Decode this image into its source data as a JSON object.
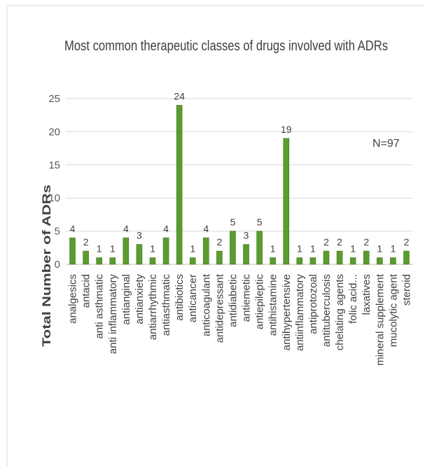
{
  "chart_data": {
    "type": "bar",
    "title": "Most common therapeutic classes of drugs involved with ADRs",
    "ylabel": "Total Number of ADRs",
    "xlabel": "",
    "ylim": [
      0,
      25
    ],
    "yticks": [
      0,
      5,
      10,
      15,
      20,
      25
    ],
    "grid": true,
    "annotation": "N=97",
    "bar_color": "#5b9b2f",
    "categories": [
      "analgesics",
      "antacid",
      "anti asthmatic",
      "anti inflammatory",
      "antianginal",
      "antianxiety",
      "antiarrhythmic",
      "antiasthmatic",
      "antibiotics",
      "anticancer",
      "anticoagulant",
      "antidepressant",
      "antidiabetic",
      "antiemetic",
      "antiepileptic",
      "antihistamine",
      "antihypertensive",
      "antiinflammatory",
      "antiprotozoal",
      "antituberculosis",
      "chelating agents",
      "folic acid...",
      "laxatives",
      "mineral supplement",
      "mucolytic agent",
      "steroid"
    ],
    "values": [
      4,
      2,
      1,
      1,
      4,
      3,
      1,
      4,
      24,
      1,
      4,
      2,
      5,
      3,
      5,
      1,
      19,
      1,
      1,
      2,
      2,
      1,
      2,
      1,
      1,
      2
    ]
  }
}
